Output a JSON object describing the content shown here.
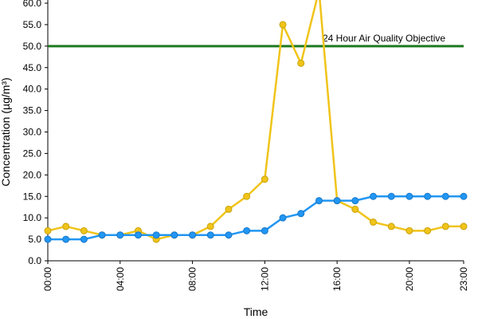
{
  "chart_data": {
    "type": "line",
    "title": "",
    "xlabel": "Time",
    "ylabel": "Concentration (µg/m³)",
    "ylim": [
      0,
      60
    ],
    "y_ticks": [
      "0.0",
      "5.0",
      "10.0",
      "15.0",
      "20.0",
      "25.0",
      "30.0",
      "35.0",
      "40.0",
      "45.0",
      "50.0",
      "55.0",
      "60.0"
    ],
    "x_ticks": [
      "00:00",
      "04:00",
      "08:00",
      "12:00",
      "16:00",
      "20:00",
      "23:00"
    ],
    "x_tick_hours": [
      0,
      4,
      8,
      12,
      16,
      20,
      23
    ],
    "x": [
      0,
      1,
      2,
      3,
      4,
      5,
      6,
      7,
      8,
      9,
      10,
      11,
      12,
      13,
      14,
      15,
      16,
      17,
      18,
      19,
      20,
      21,
      22,
      23
    ],
    "grid": false,
    "legend": "none",
    "series": [
      {
        "color": "#f0c419",
        "values": [
          7,
          8,
          7,
          6,
          6,
          7,
          5,
          6,
          6,
          8,
          12,
          15,
          19,
          55,
          46,
          63,
          14,
          12,
          9,
          8,
          7,
          7,
          8,
          8
        ]
      },
      {
        "color": "#2196f3",
        "values": [
          5,
          5,
          5,
          6,
          6,
          6,
          6,
          6,
          6,
          6,
          6,
          7,
          7,
          10,
          11,
          14,
          14,
          14,
          15,
          15,
          15,
          15,
          15,
          15
        ]
      }
    ],
    "reference_line": {
      "value": 50,
      "label": "24 Hour Air Quality Objective",
      "color": "#1e7a1e"
    }
  }
}
